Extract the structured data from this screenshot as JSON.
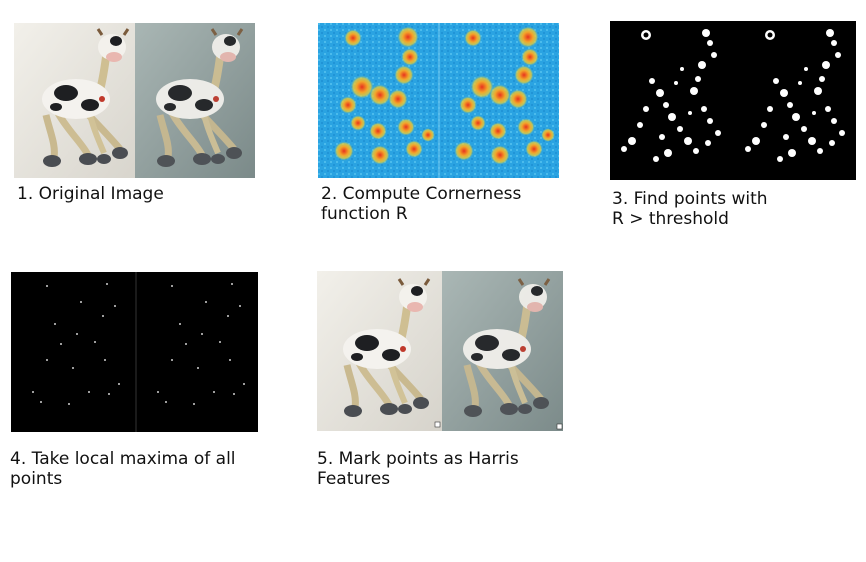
{
  "steps": [
    {
      "caption": "1. Original Image",
      "panel": "original"
    },
    {
      "caption": "2. Compute Cornerness\nfunction R",
      "panel": "cornerness"
    },
    {
      "caption": "3. Find points with\nR > threshold",
      "panel": "threshold"
    },
    {
      "caption": "4. Take local maxima of all\npoints",
      "panel": "local-maxima"
    },
    {
      "caption": "5. Mark points as Harris\nFeatures",
      "panel": "harris-features"
    }
  ],
  "colors": {
    "heat_blue": "#29a8e6",
    "heat_red": "#e8321e",
    "heat_yellow": "#f5d22a",
    "bg_left": "#e6e3dc",
    "bg_right": "#8a9998"
  }
}
